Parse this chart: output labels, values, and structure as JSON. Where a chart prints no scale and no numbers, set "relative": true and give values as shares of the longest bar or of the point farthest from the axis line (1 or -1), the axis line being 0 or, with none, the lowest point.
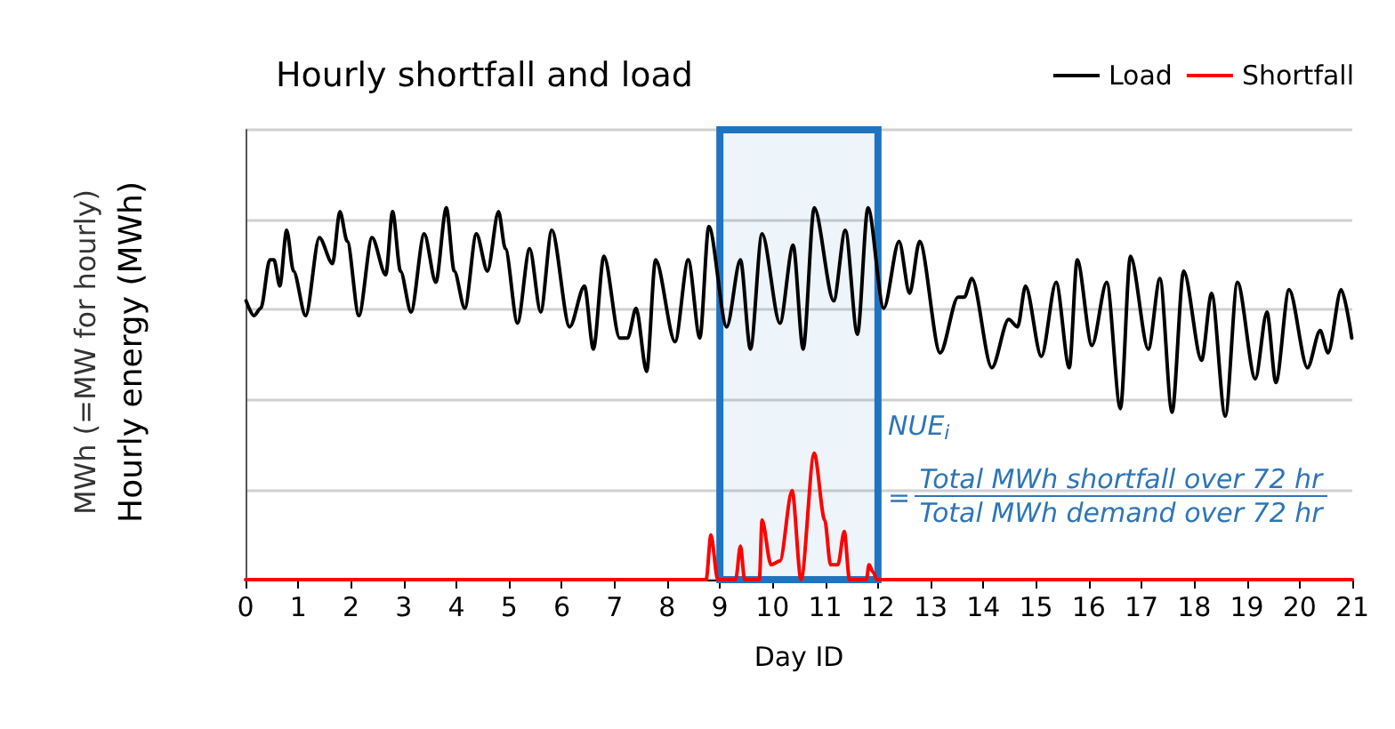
{
  "chart_data": {
    "type": "line",
    "title": "Hourly shortfall and load",
    "xlabel": "Day ID",
    "ylabel": "Hourly energy (MWh)",
    "relative": true,
    "xlim": [
      0,
      21
    ],
    "xticks": [
      0,
      1,
      2,
      3,
      4,
      5,
      6,
      7,
      8,
      9,
      10,
      11,
      12,
      13,
      14,
      15,
      16,
      17,
      18,
      19,
      20,
      21
    ],
    "grid": "y",
    "legend": "top right",
    "marker": "none",
    "line_style": "solid",
    "annotations": [
      "MWh (=MW for hourly)",
      "NUE$_{i}$",
      "=",
      "Total MWh shortfall over 72 hr",
      "Total MWh demand over 72 hr"
    ],
    "bands": [
      {
        "axis": "x",
        "from": 9,
        "to": 12,
        "color": "#1f74c0"
      }
    ],
    "series": [
      {
        "name": "Load",
        "color": "#000000",
        "x": [
          0.01,
          0.16,
          0.29,
          0.46,
          0.54,
          0.65,
          0.78,
          0.91,
          1.14,
          1.4,
          1.65,
          1.79,
          1.93,
          2.15,
          2.4,
          2.66,
          2.79,
          2.94,
          3.14,
          3.39,
          3.61,
          3.81,
          3.96,
          4.16,
          4.38,
          4.59,
          4.8,
          4.93,
          5.16,
          5.39,
          5.6,
          5.81,
          6.15,
          6.43,
          6.6,
          6.8,
          7.1,
          7.25,
          7.41,
          7.61,
          7.78,
          8.15,
          8.4,
          8.62,
          8.79,
          9.13,
          9.39,
          9.58,
          9.8,
          10.14,
          10.39,
          10.58,
          10.79,
          11.16,
          11.38,
          11.61,
          11.81,
          12.11,
          12.4,
          12.6,
          12.79,
          13.18,
          13.52,
          13.64,
          13.78,
          14.16,
          14.48,
          14.65,
          14.8,
          15.1,
          15.38,
          15.63,
          15.78,
          16.06,
          16.34,
          16.6,
          16.79,
          17.13,
          17.35,
          17.58,
          17.8,
          18.14,
          18.33,
          18.59,
          18.82,
          19.16,
          19.38,
          19.55,
          19.8,
          20.15,
          20.39,
          20.54,
          20.79,
          20.99
        ],
        "values": [
          0.75,
          0.71,
          0.73,
          0.86,
          0.86,
          0.79,
          0.94,
          0.83,
          0.71,
          0.92,
          0.85,
          0.99,
          0.91,
          0.71,
          0.92,
          0.82,
          0.99,
          0.83,
          0.72,
          0.93,
          0.8,
          1,
          0.83,
          0.73,
          0.93,
          0.83,
          0.99,
          0.89,
          0.69,
          0.89,
          0.72,
          0.94,
          0.68,
          0.79,
          0.62,
          0.87,
          0.65,
          0.65,
          0.73,
          0.56,
          0.86,
          0.64,
          0.86,
          0.65,
          0.95,
          0.68,
          0.86,
          0.62,
          0.93,
          0.69,
          0.9,
          0.62,
          1,
          0.75,
          0.94,
          0.66,
          1,
          0.73,
          0.91,
          0.77,
          0.91,
          0.61,
          0.76,
          0.76,
          0.81,
          0.57,
          0.7,
          0.68,
          0.79,
          0.6,
          0.8,
          0.57,
          0.86,
          0.63,
          0.8,
          0.46,
          0.87,
          0.62,
          0.81,
          0.45,
          0.83,
          0.59,
          0.77,
          0.44,
          0.8,
          0.54,
          0.72,
          0.53,
          0.78,
          0.57,
          0.67,
          0.61,
          0.78,
          0.65
        ]
      },
      {
        "name": "Shortfall",
        "color": "#ff0000",
        "x": [
          0,
          8.74,
          8.83,
          8.96,
          9.3,
          9.39,
          9.47,
          9.75,
          9.8,
          9.97,
          10.14,
          10.37,
          10.54,
          10.79,
          10.99,
          11.1,
          11.24,
          11.36,
          11.46,
          11.78,
          11.83,
          11.91,
          11.98,
          21
        ],
        "values": [
          0,
          0,
          0.12,
          0,
          0,
          0.09,
          0,
          0,
          0.16,
          0.04,
          0.05,
          0.24,
          0,
          0.34,
          0.16,
          0.04,
          0.04,
          0.13,
          0,
          0,
          0.04,
          0.02,
          0,
          0
        ]
      }
    ]
  }
}
